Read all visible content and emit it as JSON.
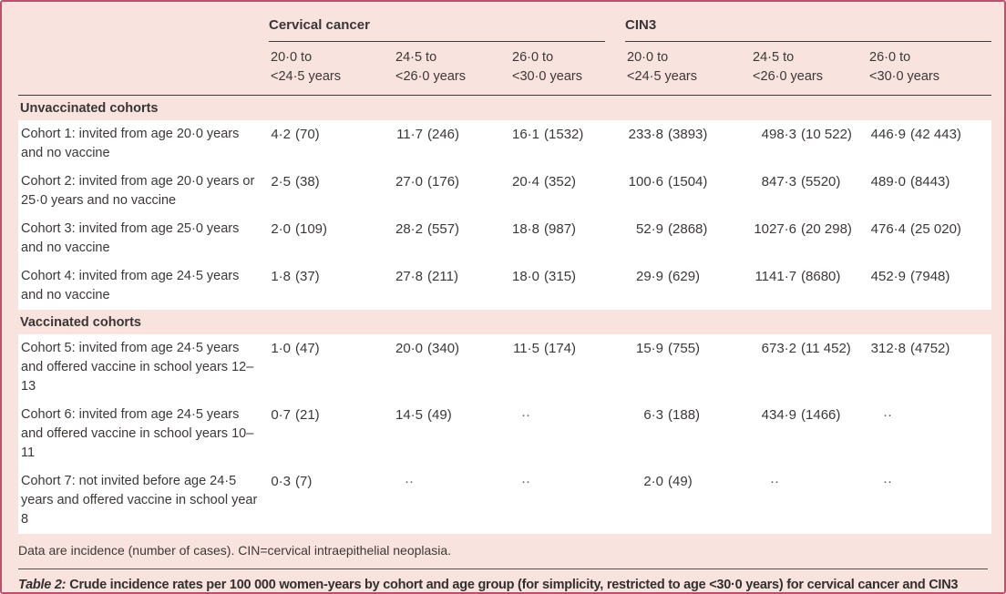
{
  "colors": {
    "card_background": "#f8e3de",
    "card_border": "#ba4f6e",
    "rule_dark": "#3d3b3c",
    "row_background": "#ffffff",
    "text": "#3c3837"
  },
  "table": {
    "groups": [
      {
        "label": "Cervical cancer",
        "span": 3
      },
      {
        "label": "CIN3",
        "span": 3
      }
    ],
    "age_columns": [
      {
        "line1": "20·0 to",
        "line2": "<24·5 years"
      },
      {
        "line1": "24·5 to",
        "line2": "<26·0 years"
      },
      {
        "line1": "26·0 to",
        "line2": "<30·0 years"
      }
    ],
    "missing_marker": "··",
    "sections": [
      {
        "label": "Unvaccinated cohorts",
        "rows": [
          {
            "label": "Cohort 1: invited from age 20·0 years and no vaccine",
            "values": [
              "4·2 (70)",
              "11·7 (246)",
              "16·1 (1532)",
              "233·8 (3893)",
              "498·3 (10 522)",
              "446·9 (42 443)"
            ]
          },
          {
            "label": "Cohort 2: invited from age 20·0 years or 25·0 years and no vaccine",
            "values": [
              "2·5 (38)",
              "27·0 (176)",
              "20·4 (352)",
              "100·6 (1504)",
              "847·3 (5520)",
              "489·0 (8443)"
            ]
          },
          {
            "label": "Cohort 3: invited from age 25·0 years and no vaccine",
            "values": [
              "2·0 (109)",
              "28·2 (557)",
              "18·8 (987)",
              "52·9 (2868)",
              "1027·6 (20 298)",
              "476·4 (25 020)"
            ]
          },
          {
            "label": "Cohort 4: invited from age 24·5 years and no vaccine",
            "values": [
              "1·8 (37)",
              "27·8 (211)",
              "18·0 (315)",
              "29·9 (629)",
              "1141·7 (8680)",
              "452·9 (7948)"
            ]
          }
        ]
      },
      {
        "label": "Vaccinated cohorts",
        "rows": [
          {
            "label": "Cohort 5: invited from age 24·5 years and offered vaccine in school years 12–13",
            "values": [
              "1·0 (47)",
              "20·0 (340)",
              "11·5 (174)",
              "15·9 (755)",
              "673·2 (11 452)",
              "312·8 (4752)"
            ]
          },
          {
            "label": "Cohort 6: invited from age 24·5 years and offered vaccine in school years 10–11",
            "values": [
              "0·7 (21)",
              "14·5 (49)",
              "··",
              "6·3 (188)",
              "434·9 (1466)",
              "··"
            ]
          },
          {
            "label": "Cohort 7: not invited before age 24·5 years and offered vaccine in school year 8",
            "values": [
              "0·3 (7)",
              "··",
              "··",
              "2·0 (49)",
              "··",
              "··"
            ]
          }
        ]
      }
    ],
    "footnote": "Data are incidence (number of cases). CIN=cervical intraepithelial neoplasia.",
    "caption": {
      "prefix": "Table 2:",
      "text": "Crude incidence rates per 100 000 women-years by cohort and age group (for simplicity, restricted to age <30·0 years) for cervical cancer and CIN3"
    }
  }
}
